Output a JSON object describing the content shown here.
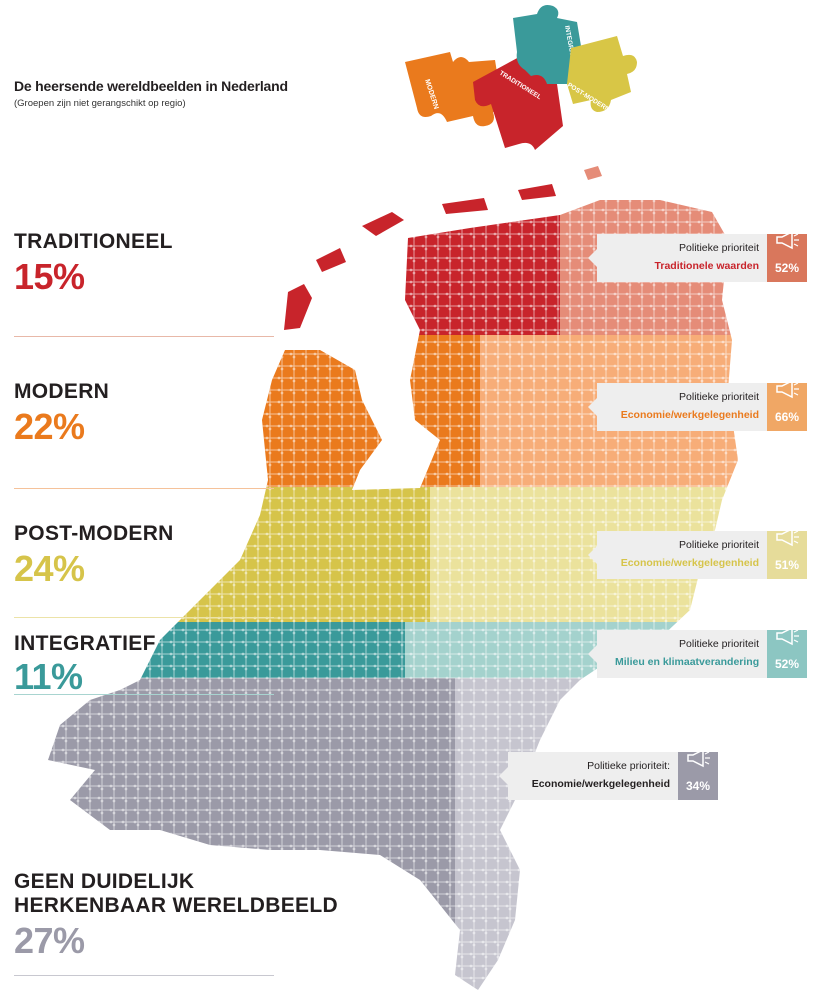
{
  "header": {
    "title": "De heersende wereldbeelden in Nederland",
    "subtitle": "(Groepen zijn niet gerangschikt op regio)"
  },
  "puzzle": {
    "pieces": [
      {
        "label": "MODERN",
        "color": "#ea7a1d"
      },
      {
        "label": "TRADITIONEEL",
        "color": "#c8242b"
      },
      {
        "label": "INTEGRATIEF",
        "color": "#3a9a9a"
      },
      {
        "label": "POST-MODERN",
        "color": "#d8c646"
      }
    ]
  },
  "categories": [
    {
      "name": "TRADITIONEEL",
      "pct": "15%",
      "color": "#c8242b",
      "rule_color": "#e8b8a8"
    },
    {
      "name": "MODERN",
      "pct": "22%",
      "color": "#ea7a1d",
      "rule_color": "#f5c29a"
    },
    {
      "name": "POST-MODERN",
      "pct": "24%",
      "color": "#d6c44a",
      "rule_color": "#ece3a8"
    },
    {
      "name": "INTEGRATIEF",
      "pct": "11%",
      "color": "#3a9a9a",
      "rule_color": "#a8d4d0"
    },
    {
      "name_line1": "GEEN DUIDELIJK",
      "name_line2": "HERKENBAAR WERELDBEELD",
      "pct": "27%",
      "color": "#9b9aa8",
      "rule_color": "#c8c8d0"
    }
  ],
  "callouts": [
    {
      "label": "Politieke prioriteit",
      "value": "Traditionele waarden",
      "pct": "52%",
      "value_color": "#c8242b",
      "badge_color": "#d9775c"
    },
    {
      "label": "Politieke prioriteit",
      "value": "Economie/werkgelegenheid",
      "pct": "66%",
      "value_color": "#ea7a1d",
      "badge_color": "#f0a765"
    },
    {
      "label": "Politieke prioriteit",
      "value": "Economie/werkgelegenheid",
      "pct": "51%",
      "value_color": "#d6c44a",
      "badge_color": "#e6dc9a"
    },
    {
      "label": "Politieke prioriteit",
      "value": "Milieu en klimaatverandering",
      "pct": "52%",
      "value_color": "#3a9a9a",
      "badge_color": "#8cc6c2"
    },
    {
      "label": "Politieke prioriteit:",
      "value": "Economie/werkgelegenheid",
      "pct": "34%",
      "value_color": "#231f20",
      "badge_color": "#9b9aa8"
    }
  ],
  "map_colors": {
    "traditioneel_dark": "#c8242b",
    "traditioneel_light": "#e58c78",
    "modern_dark": "#ea7a1d",
    "modern_light": "#f7ad78",
    "postmodern_dark": "#d6c44a",
    "postmodern_light": "#ebe29c",
    "integratief_dark": "#3a9a9a",
    "integratief_light": "#a4d2cd",
    "geen_dark": "#9b9aa8",
    "geen_light": "#c6c5cf"
  }
}
